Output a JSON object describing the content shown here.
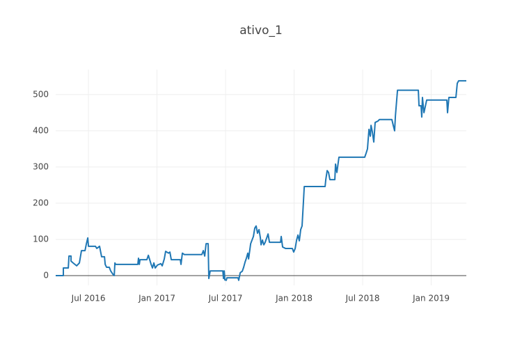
{
  "chart_data": {
    "type": "line",
    "title": "ativo_1",
    "xlim": [
      2016.261,
      2019.256
    ],
    "xticks": [
      {
        "value": 2016.5,
        "label": "Jul 2016"
      },
      {
        "value": 2017.0,
        "label": "Jan 2017"
      },
      {
        "value": 2017.5,
        "label": "Jul 2017"
      },
      {
        "value": 2018.0,
        "label": "Jan 2018"
      },
      {
        "value": 2018.5,
        "label": "Jul 2018"
      },
      {
        "value": 2019.0,
        "label": "Jan 2019"
      }
    ],
    "ylim": [
      -27,
      569
    ],
    "yticks": [
      0,
      100,
      200,
      300,
      400,
      500
    ],
    "grid": true,
    "series": [
      {
        "color": "#1f77b4",
        "x": [
          2016.261,
          2016.317,
          2016.317,
          2016.353,
          2016.358,
          2016.373,
          2016.373,
          2016.388,
          2016.414,
          2016.434,
          2016.449,
          2016.475,
          2016.485,
          2016.495,
          2016.5,
          2016.551,
          2016.561,
          2016.581,
          2016.596,
          2016.617,
          2016.622,
          2016.632,
          2016.652,
          2016.662,
          2016.678,
          2016.688,
          2016.693,
          2016.698,
          2016.86,
          2016.865,
          2016.871,
          2016.876,
          2016.926,
          2016.937,
          2016.957,
          2016.967,
          2016.977,
          2016.987,
          2017.003,
          2017.028,
          2017.038,
          2017.053,
          2017.063,
          2017.084,
          2017.094,
          2017.104,
          2017.17,
          2017.175,
          2017.185,
          2017.2,
          2017.327,
          2017.338,
          2017.348,
          2017.358,
          2017.373,
          2017.378,
          2017.388,
          2017.48,
          2017.485,
          2017.49,
          2017.495,
          2017.505,
          2017.51,
          2017.591,
          2017.596,
          2017.607,
          2017.622,
          2017.632,
          2017.642,
          2017.652,
          2017.662,
          2017.668,
          2017.673,
          2017.683,
          2017.703,
          2017.713,
          2017.723,
          2017.733,
          2017.744,
          2017.754,
          2017.759,
          2017.769,
          2017.779,
          2017.789,
          2017.81,
          2017.82,
          2017.901,
          2017.906,
          2017.916,
          2017.937,
          2017.987,
          2017.997,
          2018.008,
          2018.018,
          2018.028,
          2018.038,
          2018.048,
          2018.058,
          2018.068,
          2018.074,
          2018.226,
          2018.231,
          2018.241,
          2018.251,
          2018.261,
          2018.297,
          2018.302,
          2018.312,
          2018.327,
          2018.515,
          2018.525,
          2018.535,
          2018.546,
          2018.556,
          2018.561,
          2018.571,
          2018.581,
          2018.591,
          2018.612,
          2018.622,
          2018.713,
          2018.723,
          2018.733,
          2018.739,
          2018.754,
          2018.906,
          2018.911,
          2018.926,
          2018.931,
          2018.936,
          2018.947,
          2018.967,
          2019.114,
          2019.119,
          2019.129,
          2019.18,
          2019.19,
          2019.2,
          2019.256
        ],
        "values": [
          0,
          0,
          21,
          21,
          54,
          54,
          40,
          35,
          27,
          35,
          69,
          69,
          88,
          104,
          81,
          81,
          75,
          81,
          52,
          52,
          31,
          23,
          23,
          13,
          4,
          0,
          35,
          31,
          31,
          48,
          31,
          44,
          44,
          56,
          31,
          21,
          35,
          21,
          29,
          33,
          27,
          46,
          67,
          62,
          65,
          44,
          44,
          31,
          62,
          58,
          58,
          69,
          54,
          88,
          88,
          -8,
          13,
          13,
          -8,
          13,
          -12,
          -13,
          -6,
          -6,
          -13,
          8,
          12,
          23,
          37,
          48,
          62,
          46,
          60,
          88,
          108,
          131,
          137,
          117,
          127,
          104,
          85,
          98,
          85,
          92,
          115,
          92,
          92,
          108,
          79,
          75,
          75,
          65,
          75,
          98,
          112,
          96,
          127,
          137,
          204,
          246,
          246,
          265,
          290,
          285,
          265,
          265,
          308,
          285,
          327,
          327,
          338,
          350,
          404,
          385,
          415,
          396,
          369,
          423,
          427,
          431,
          431,
          415,
          400,
          442,
          512,
          512,
          469,
          469,
          438,
          492,
          450,
          485,
          485,
          450,
          492,
          492,
          531,
          538,
          538
        ]
      }
    ]
  }
}
